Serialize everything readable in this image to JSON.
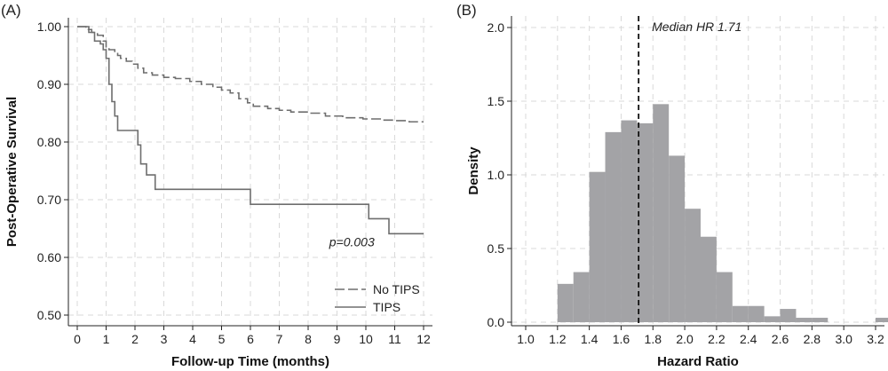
{
  "colors": {
    "curve": "#6e6e6e",
    "grid": "#d9d9d9",
    "bar": "#a3a3a6",
    "axis": "#222222",
    "median_line": "#111111"
  },
  "chart_data": [
    {
      "type": "line",
      "panel_label": "(A)",
      "xlabel": "Follow-up Time (months)",
      "ylabel": "Post-Operative Survival",
      "xlim": [
        0,
        12
      ],
      "ylim": [
        0.5,
        1.0
      ],
      "xticks": [
        0,
        1,
        2,
        3,
        4,
        5,
        6,
        7,
        8,
        9,
        10,
        11,
        12
      ],
      "yticks": [
        "0.50",
        "0.60",
        "0.70",
        "0.80",
        "0.90",
        "1.00"
      ],
      "grid": true,
      "legend_position": "bottom-right",
      "annotation": "p=0.003",
      "annotation_at": {
        "x": 10.3,
        "y": 0.627
      },
      "series": [
        {
          "name": "No TIPS",
          "style": "dashed",
          "x": [
            0,
            0.3,
            0.5,
            0.7,
            0.9,
            1.0,
            1.1,
            1.3,
            1.4,
            1.5,
            1.7,
            1.9,
            2.1,
            2.3,
            2.6,
            3.0,
            3.4,
            3.9,
            4.3,
            4.7,
            5.0,
            5.3,
            5.6,
            5.9,
            6.1,
            6.6,
            7.0,
            7.4,
            8.0,
            8.6,
            9.2,
            9.9,
            10.5,
            11.0,
            11.5,
            12.0
          ],
          "y": [
            1.0,
            0.995,
            0.99,
            0.985,
            0.975,
            0.965,
            0.96,
            0.955,
            0.95,
            0.945,
            0.94,
            0.935,
            0.928,
            0.92,
            0.916,
            0.912,
            0.91,
            0.905,
            0.9,
            0.895,
            0.89,
            0.885,
            0.875,
            0.868,
            0.862,
            0.858,
            0.855,
            0.852,
            0.85,
            0.845,
            0.842,
            0.84,
            0.838,
            0.837,
            0.835,
            0.835
          ]
        },
        {
          "name": "TIPS",
          "style": "solid",
          "x": [
            0,
            0.4,
            0.6,
            0.8,
            0.9,
            1.0,
            1.1,
            1.2,
            1.3,
            1.4,
            1.9,
            2.1,
            2.2,
            2.4,
            2.7,
            3.0,
            4.0,
            5.0,
            6.0,
            7.0,
            8.0,
            9.0,
            10.1,
            10.5,
            10.8,
            11.0,
            12.0
          ],
          "y": [
            1.0,
            0.99,
            0.975,
            0.97,
            0.96,
            0.945,
            0.9,
            0.87,
            0.845,
            0.82,
            0.82,
            0.795,
            0.762,
            0.743,
            0.718,
            0.718,
            0.718,
            0.718,
            0.692,
            0.692,
            0.692,
            0.692,
            0.667,
            0.667,
            0.641,
            0.641,
            0.641
          ]
        }
      ]
    },
    {
      "type": "bar",
      "panel_label": "(B)",
      "xlabel": "Hazard Ratio",
      "ylabel": "Density",
      "xlim": [
        0.95,
        3.25
      ],
      "ylim": [
        0,
        2.0
      ],
      "xticks": [
        "1.0",
        "1.2",
        "1.4",
        "1.6",
        "1.8",
        "2.0",
        "2.2",
        "2.4",
        "2.6",
        "2.8",
        "3.0",
        "3.2"
      ],
      "yticks": [
        "0.0",
        "0.5",
        "1.0",
        "1.5",
        "2.0"
      ],
      "grid": true,
      "bin_width": 0.1,
      "bin_starts": [
        1.2,
        1.3,
        1.4,
        1.5,
        1.6,
        1.7,
        1.8,
        1.9,
        2.0,
        2.1,
        2.2,
        2.3,
        2.4,
        2.5,
        2.6,
        2.7,
        2.8,
        2.9,
        3.0,
        3.1,
        3.2
      ],
      "values": [
        0.26,
        0.34,
        1.02,
        1.29,
        1.37,
        1.35,
        1.48,
        1.13,
        0.77,
        0.58,
        0.34,
        0.11,
        0.11,
        0.04,
        0.09,
        0.03,
        0.03,
        0,
        0,
        0,
        0.03
      ],
      "median_line": {
        "value": 1.71,
        "label": "Median HR 1.71"
      }
    }
  ]
}
